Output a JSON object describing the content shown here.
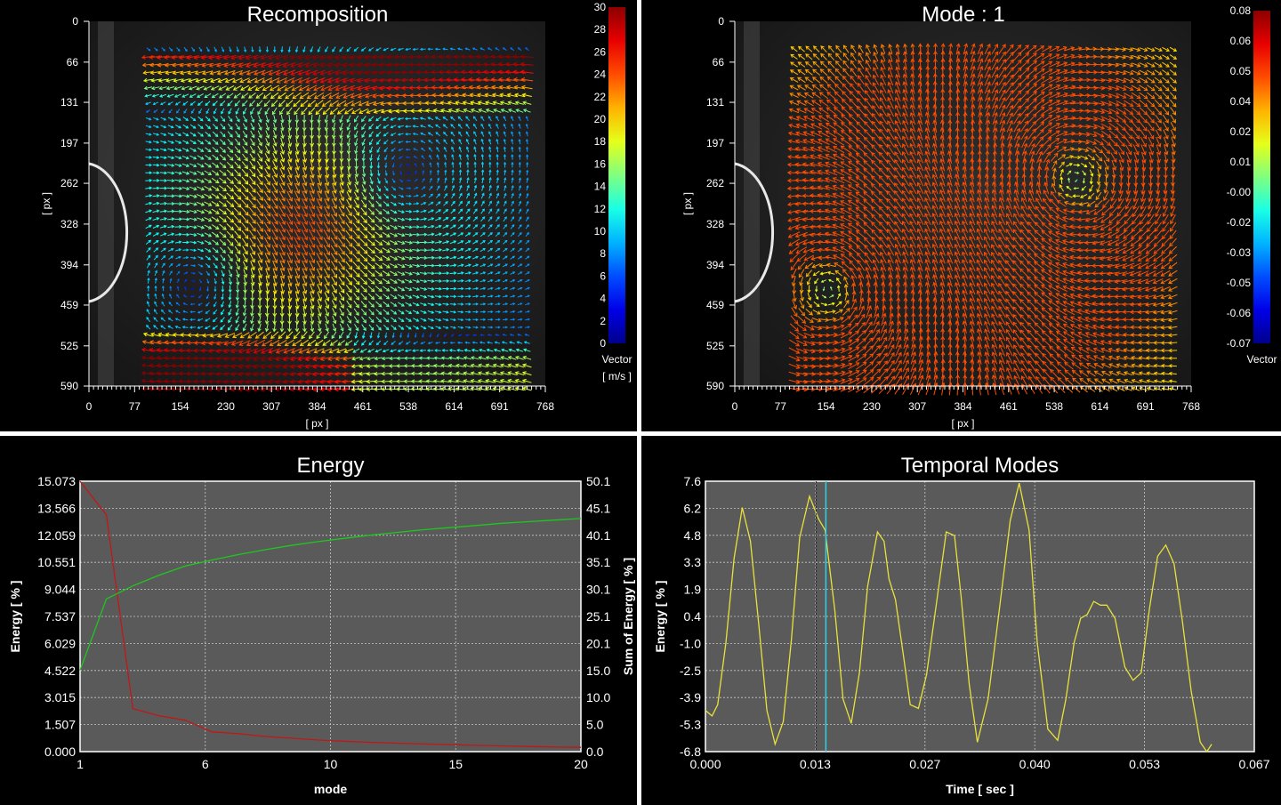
{
  "chart_data": [
    {
      "type": "vector_field",
      "title": "Recomposition",
      "xlabel": "[ px ]",
      "ylabel": "[ px ]",
      "xticks": [
        "0",
        "77",
        "154",
        "230",
        "307",
        "384",
        "461",
        "538",
        "614",
        "691",
        "768"
      ],
      "yticks": [
        "0",
        "66",
        "131",
        "197",
        "262",
        "328",
        "394",
        "459",
        "525",
        "590"
      ],
      "xlim": [
        0,
        768
      ],
      "ylim": [
        0,
        590
      ],
      "colorbar": {
        "title": "Vector",
        "unit": "[ m/s ]",
        "ticks": [
          "30",
          "28",
          "26",
          "24",
          "22",
          "20",
          "18",
          "16",
          "14",
          "12",
          "10",
          "8",
          "6",
          "4",
          "2",
          "0"
        ],
        "range": [
          0,
          30
        ]
      },
      "field": {
        "vortices": [
          {
            "x": 210,
            "y": 410,
            "strength": 1
          },
          {
            "x": 500,
            "y": 260,
            "strength": -1
          }
        ],
        "top_jet": {
          "y_from": 55,
          "y_to": 150,
          "speed": 25,
          "direction": "left"
        },
        "bottom_jet": {
          "y_from": 500,
          "y_to": 610,
          "speed": 24,
          "direction": "left"
        }
      }
    },
    {
      "type": "vector_field",
      "title": "Mode : 1",
      "xlabel": "[ px ]",
      "ylabel": "[ px ]",
      "xticks": [
        "0",
        "77",
        "154",
        "230",
        "307",
        "384",
        "461",
        "538",
        "614",
        "691",
        "768"
      ],
      "yticks": [
        "0",
        "66",
        "131",
        "197",
        "262",
        "328",
        "394",
        "459",
        "525",
        "590"
      ],
      "xlim": [
        0,
        768
      ],
      "ylim": [
        0,
        590
      ],
      "colorbar": {
        "title": "Vector",
        "unit": "",
        "ticks": [
          "0.08",
          "0.06",
          "0.05",
          "0.04",
          "0.02",
          "0.01",
          "-0.00",
          "-0.02",
          "-0.03",
          "-0.05",
          "-0.06",
          "-0.07"
        ],
        "range": [
          -0.07,
          0.08
        ]
      },
      "field": {
        "vortices": [
          {
            "x": 190,
            "y": 420,
            "strength": -1
          },
          {
            "x": 540,
            "y": 270,
            "strength": 1
          }
        ]
      }
    },
    {
      "type": "line",
      "title": "Energy",
      "xlabel": "mode",
      "ylabel": "Energy [ % ]",
      "y2label": "Sum of Energy [ % ]",
      "xticks": [
        "1",
        "6",
        "10",
        "15",
        "20"
      ],
      "yticks": [
        "15.073",
        "13.566",
        "12.059",
        "10.551",
        "9.044",
        "7.537",
        "6.029",
        "4.522",
        "3.015",
        "1.507",
        "0.000"
      ],
      "y2ticks": [
        "50.1",
        "45.1",
        "40.1",
        "35.1",
        "30.1",
        "25.1",
        "20.1",
        "15.0",
        "10.0",
        "5.0",
        "0.0"
      ],
      "xlim": [
        1,
        20
      ],
      "ylim": [
        0,
        15.073
      ],
      "y2lim": [
        0,
        50.1
      ],
      "x": [
        1,
        2,
        3,
        4,
        5,
        6,
        7,
        8,
        9,
        10,
        11,
        12,
        13,
        14,
        15,
        16,
        17,
        18,
        19,
        20
      ],
      "series": [
        {
          "axis": "left",
          "color": "#c01818",
          "values": [
            15.07,
            13.2,
            2.4,
            2.0,
            1.75,
            1.1,
            1.0,
            0.85,
            0.75,
            0.65,
            0.58,
            0.52,
            0.47,
            0.43,
            0.39,
            0.35,
            0.32,
            0.29,
            0.26,
            0.24
          ]
        },
        {
          "axis": "right",
          "color": "#1ec81e",
          "values": [
            15.1,
            28.3,
            30.7,
            32.7,
            34.4,
            35.5,
            36.5,
            37.4,
            38.2,
            38.9,
            39.5,
            40.1,
            40.6,
            41.1,
            41.5,
            41.9,
            42.3,
            42.6,
            42.9,
            43.2
          ]
        }
      ]
    },
    {
      "type": "line",
      "title": "Temporal Modes",
      "xlabel": "Time [ sec ]",
      "ylabel": "Energy [ % ]",
      "xticks": [
        "0.000",
        "0.013",
        "0.027",
        "0.040",
        "0.053",
        "0.067"
      ],
      "yticks": [
        "7.6",
        "6.2",
        "4.8",
        "3.3",
        "1.9",
        "0.4",
        "-1.0",
        "-2.5",
        "-3.9",
        "-5.3",
        "-6.8"
      ],
      "xlim": [
        0,
        0.067
      ],
      "ylim": [
        -6.8,
        7.6
      ],
      "cursor_x": 0.0147,
      "marker_x": 0.0135,
      "series": [
        {
          "color": "#e8e23a",
          "points": [
            [
              0.0,
              -4.6
            ],
            [
              0.0008,
              -4.9
            ],
            [
              0.0015,
              -4.3
            ],
            [
              0.0025,
              -1.0
            ],
            [
              0.0035,
              3.5
            ],
            [
              0.0045,
              6.2
            ],
            [
              0.0055,
              4.4
            ],
            [
              0.0065,
              0.0
            ],
            [
              0.0075,
              -4.6
            ],
            [
              0.0085,
              -6.4
            ],
            [
              0.0095,
              -5.2
            ],
            [
              0.0105,
              -0.8
            ],
            [
              0.0115,
              4.6
            ],
            [
              0.0127,
              6.8
            ],
            [
              0.0138,
              5.6
            ],
            [
              0.0146,
              5.0
            ],
            [
              0.0158,
              0.7
            ],
            [
              0.0168,
              -4.0
            ],
            [
              0.0178,
              -5.3
            ],
            [
              0.0188,
              -2.6
            ],
            [
              0.0198,
              2.0
            ],
            [
              0.021,
              4.9
            ],
            [
              0.0218,
              4.4
            ],
            [
              0.0224,
              2.4
            ],
            [
              0.0232,
              1.3
            ],
            [
              0.0242,
              -1.8
            ],
            [
              0.025,
              -4.3
            ],
            [
              0.026,
              -4.5
            ],
            [
              0.027,
              -2.7
            ],
            [
              0.0282,
              1.1
            ],
            [
              0.0294,
              4.9
            ],
            [
              0.0304,
              4.7
            ],
            [
              0.0312,
              1.5
            ],
            [
              0.0322,
              -3.2
            ],
            [
              0.0332,
              -6.3
            ],
            [
              0.0345,
              -4.0
            ],
            [
              0.0358,
              0.5
            ],
            [
              0.0372,
              5.5
            ],
            [
              0.0383,
              7.5
            ],
            [
              0.0395,
              5.0
            ],
            [
              0.0405,
              -1.0
            ],
            [
              0.0418,
              -5.6
            ],
            [
              0.043,
              -6.2
            ],
            [
              0.044,
              -4.0
            ],
            [
              0.045,
              -1.0
            ],
            [
              0.0458,
              0.3
            ],
            [
              0.0466,
              0.5
            ],
            [
              0.0474,
              1.2
            ],
            [
              0.0482,
              1.0
            ],
            [
              0.049,
              1.0
            ],
            [
              0.05,
              0.3
            ],
            [
              0.0512,
              -2.3
            ],
            [
              0.0522,
              -3.0
            ],
            [
              0.0532,
              -2.6
            ],
            [
              0.0542,
              0.8
            ],
            [
              0.0552,
              3.6
            ],
            [
              0.0562,
              4.2
            ],
            [
              0.0572,
              3.2
            ],
            [
              0.0582,
              0.2
            ],
            [
              0.0593,
              -3.6
            ],
            [
              0.0604,
              -6.3
            ],
            [
              0.0612,
              -6.8
            ],
            [
              0.0618,
              -6.4
            ]
          ]
        }
      ]
    }
  ]
}
